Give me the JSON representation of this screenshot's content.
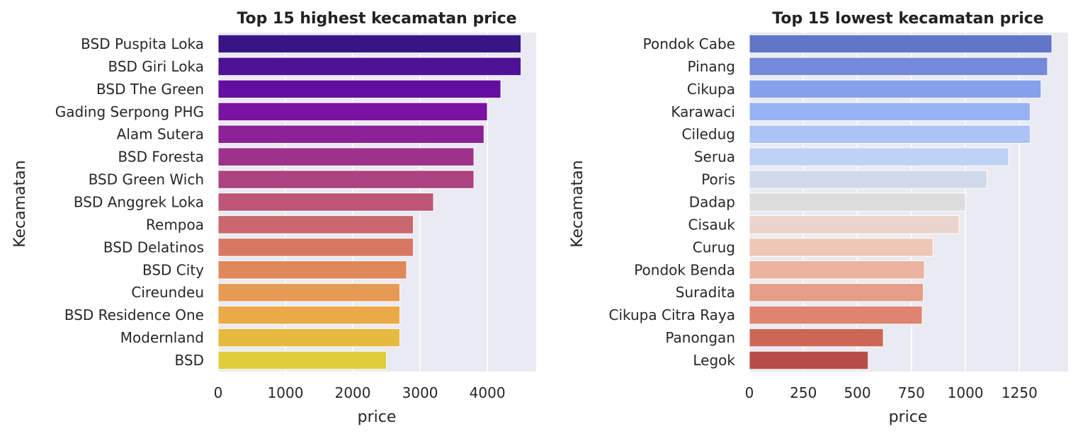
{
  "chart_data": [
    {
      "type": "bar",
      "orientation": "horizontal",
      "title": "Top 15 highest kecamatan price",
      "xlabel": "price",
      "ylabel": "Kecamatan",
      "xlim": [
        0,
        4725
      ],
      "xticks": [
        0,
        1000,
        2000,
        3000,
        4000
      ],
      "xtick_labels": [
        "0",
        "1000",
        "2000",
        "3000",
        "4000"
      ],
      "grid": true,
      "palette": "plasma",
      "categories": [
        "BSD Puspita Loka",
        "BSD Giri Loka",
        "BSD The Green",
        "Gading Serpong PHG",
        "Alam Sutera",
        "BSD Foresta",
        "BSD Green Wich",
        "BSD Anggrek Loka",
        "Rempoa",
        "BSD Delatinos",
        "BSD City",
        "Cireundeu",
        "BSD Residence One",
        "Modernland",
        "BSD"
      ],
      "values": [
        4500,
        4500,
        4200,
        4000,
        3950,
        3800,
        3800,
        3200,
        2900,
        2900,
        2800,
        2700,
        2700,
        2700,
        2500
      ],
      "colors": [
        "#371585",
        "#4d1296",
        "#640ea0",
        "#7a13a2",
        "#8a2196",
        "#9e318c",
        "#ad4280",
        "#bd5674",
        "#c9676c",
        "#d77863",
        "#e0885b",
        "#e69a54",
        "#eaaa48",
        "#e6ba3f",
        "#dfcd3d"
      ]
    },
    {
      "type": "bar",
      "orientation": "horizontal",
      "title": "Top 15 lowest kecamatan price",
      "xlabel": "price",
      "ylabel": "Kecamatan",
      "xlim": [
        0,
        1475
      ],
      "xticks": [
        0,
        250,
        500,
        750,
        1000,
        1250
      ],
      "xtick_labels": [
        "0",
        "250",
        "500",
        "750",
        "1000",
        "1250"
      ],
      "grid": true,
      "palette": "coolwarm",
      "categories": [
        "Pondok Cabe",
        "Pinang",
        "Cikupa",
        "Karawaci",
        "Ciledug",
        "Serua",
        "Poris",
        "Dadap",
        "Cisauk",
        "Curug",
        "Pondok Benda",
        "Suradita",
        "Cikupa Citra Raya",
        "Panongan",
        "Legok"
      ],
      "values": [
        1400,
        1380,
        1350,
        1300,
        1300,
        1200,
        1100,
        1000,
        970,
        850,
        810,
        805,
        800,
        620,
        550
      ],
      "colors": [
        "#6175c9",
        "#7589d9",
        "#86a1ec",
        "#98b3f4",
        "#abc3f6",
        "#bfd1f4",
        "#d0daea",
        "#dcdcdc",
        "#ead4cc",
        "#efc7b5",
        "#ecb39e",
        "#e59e87",
        "#de8470",
        "#cc6756",
        "#b84c48"
      ]
    }
  ]
}
